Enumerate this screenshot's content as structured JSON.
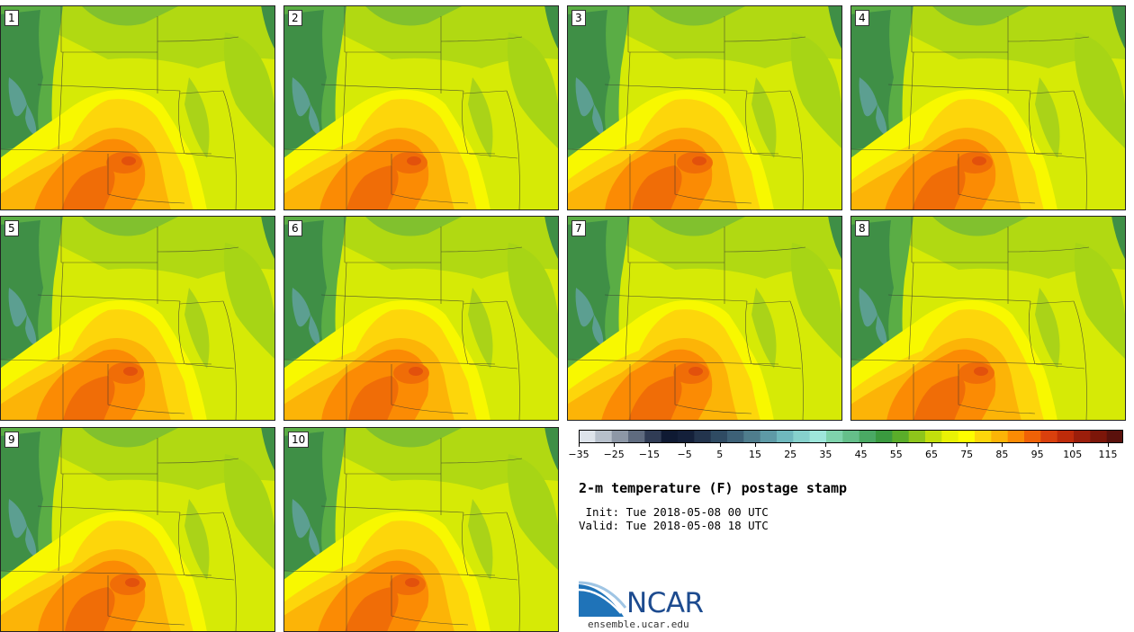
{
  "panels": [
    "1",
    "2",
    "3",
    "4",
    "5",
    "6",
    "7",
    "8",
    "9",
    "10"
  ],
  "colorbar": {
    "colors": [
      "#dde3ea",
      "#b7c0cb",
      "#8d97a6",
      "#5f6b7f",
      "#303c55",
      "#0f1a33",
      "#14203a",
      "#23344d",
      "#2f4b63",
      "#3d6177",
      "#4f7d8d",
      "#5e9aa6",
      "#6fb8bd",
      "#86d1cc",
      "#9ee6db",
      "#7fd3ac",
      "#65bf8a",
      "#4aa964",
      "#3a9a3f",
      "#5aad2a",
      "#8ec51b",
      "#c3de0c",
      "#e9f205",
      "#fefd00",
      "#fdd60b",
      "#fcb407",
      "#fb8b04",
      "#ef6207",
      "#d9400d",
      "#be2b0a",
      "#9b1e0b",
      "#7c1609",
      "#5a110c"
    ],
    "tick_labels": [
      "−35",
      "−25",
      "−15",
      "−5",
      "5",
      "15",
      "25",
      "35",
      "45",
      "55",
      "65",
      "75",
      "85",
      "95",
      "105",
      "115"
    ]
  },
  "title": "2-m temperature (F) postage stamp",
  "init_line": " Init: Tue 2018-05-08 00 UTC",
  "valid_line": "Valid: Tue 2018-05-08 18 UTC",
  "logo_text": "NCAR",
  "site": "ensemble.ucar.edu"
}
